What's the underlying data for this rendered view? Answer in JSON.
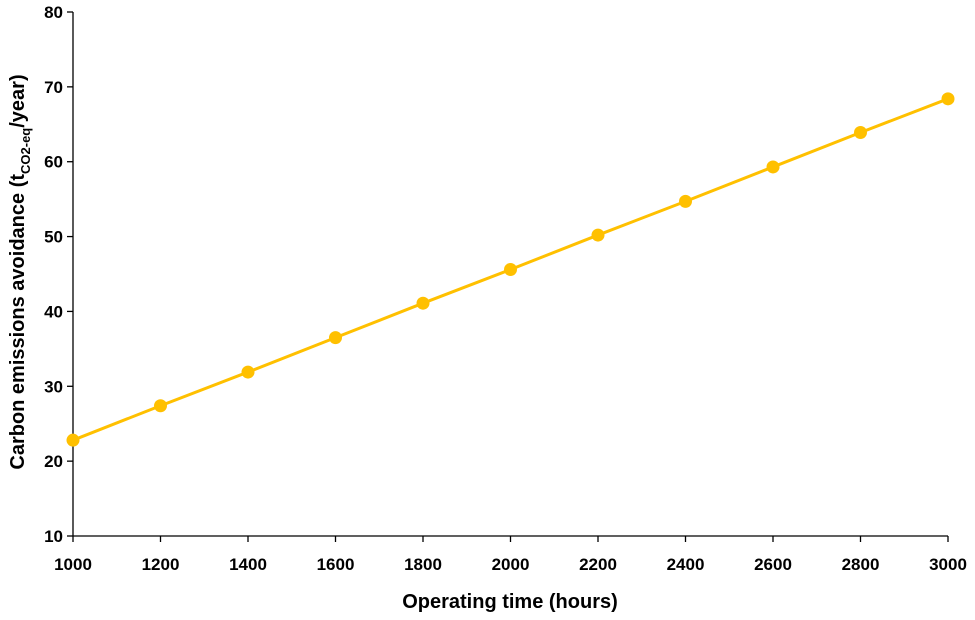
{
  "chart_data": {
    "type": "line",
    "title": "",
    "xlabel": "Operating time (hours)",
    "ylabel": {
      "prefix": "Carbon emissions avoidance (t",
      "subscript": "CO2-eq",
      "suffix": "/year)"
    },
    "xlim": [
      1000,
      3000
    ],
    "ylim": [
      10,
      80
    ],
    "x_ticks": [
      1000,
      1200,
      1400,
      1600,
      1800,
      2000,
      2200,
      2400,
      2600,
      2800,
      3000
    ],
    "y_ticks": [
      10,
      20,
      30,
      40,
      50,
      60,
      70,
      80
    ],
    "grid": false,
    "legend": "none",
    "series": [
      {
        "color": "#FFC000",
        "marker": "circle",
        "x": [
          1000,
          1200,
          1400,
          1600,
          1800,
          2000,
          2200,
          2400,
          2600,
          2800,
          3000
        ],
        "y": [
          22.8,
          27.4,
          31.9,
          36.5,
          41.1,
          45.6,
          50.2,
          54.7,
          59.3,
          63.9,
          68.4
        ]
      }
    ]
  }
}
